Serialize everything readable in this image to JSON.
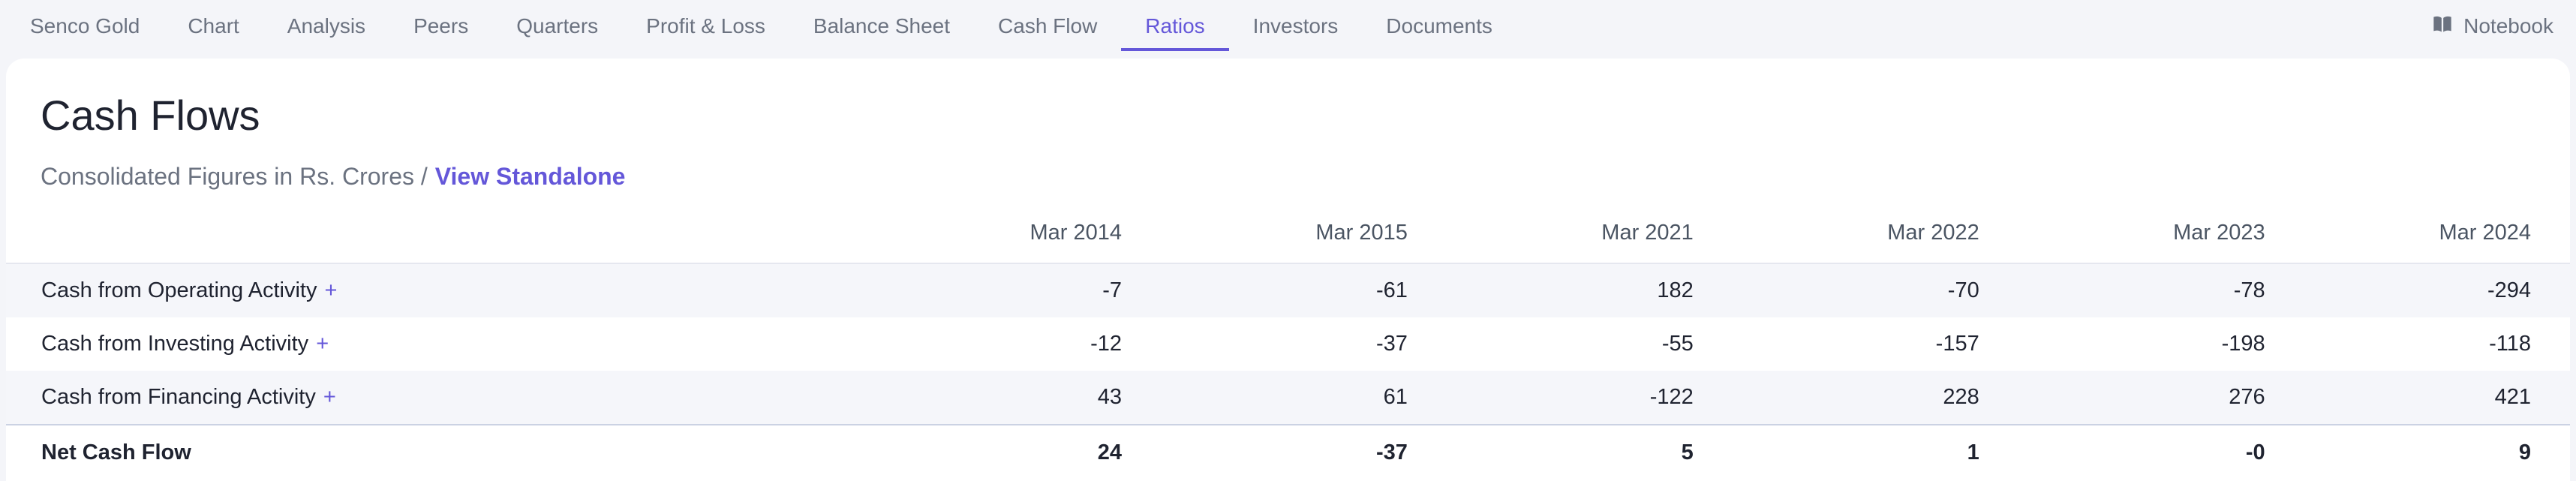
{
  "nav": {
    "tabs": [
      {
        "label": "Senco Gold",
        "active": false
      },
      {
        "label": "Chart",
        "active": false
      },
      {
        "label": "Analysis",
        "active": false
      },
      {
        "label": "Peers",
        "active": false
      },
      {
        "label": "Quarters",
        "active": false
      },
      {
        "label": "Profit & Loss",
        "active": false
      },
      {
        "label": "Balance Sheet",
        "active": false
      },
      {
        "label": "Cash Flow",
        "active": false
      },
      {
        "label": "Ratios",
        "active": true
      },
      {
        "label": "Investors",
        "active": false
      },
      {
        "label": "Documents",
        "active": false
      }
    ],
    "notebook_label": "Notebook",
    "notebook_icon": "book-icon"
  },
  "section": {
    "title": "Cash Flows",
    "subtitle": "Consolidated Figures in Rs. Crores /",
    "standalone_link": "View Standalone"
  },
  "table": {
    "columns": [
      "Mar 2014",
      "Mar 2015",
      "Mar 2021",
      "Mar 2022",
      "Mar 2023",
      "Mar 2024"
    ],
    "rows": [
      {
        "label": "Cash from Operating Activity",
        "expand": "+",
        "values": [
          "-7",
          "-61",
          "182",
          "-70",
          "-78",
          "-294"
        ]
      },
      {
        "label": "Cash from Investing Activity",
        "expand": "+",
        "values": [
          "-12",
          "-37",
          "-55",
          "-157",
          "-198",
          "-118"
        ]
      },
      {
        "label": "Cash from Financing Activity",
        "expand": "+",
        "values": [
          "43",
          "61",
          "-122",
          "228",
          "276",
          "421"
        ]
      }
    ],
    "total": {
      "label": "Net Cash Flow",
      "values": [
        "24",
        "-37",
        "5",
        "1",
        "-0",
        "9"
      ]
    }
  },
  "colors": {
    "accent": "#6457d9",
    "stripe": "#f5f6fa",
    "text_muted": "#6b7280"
  }
}
